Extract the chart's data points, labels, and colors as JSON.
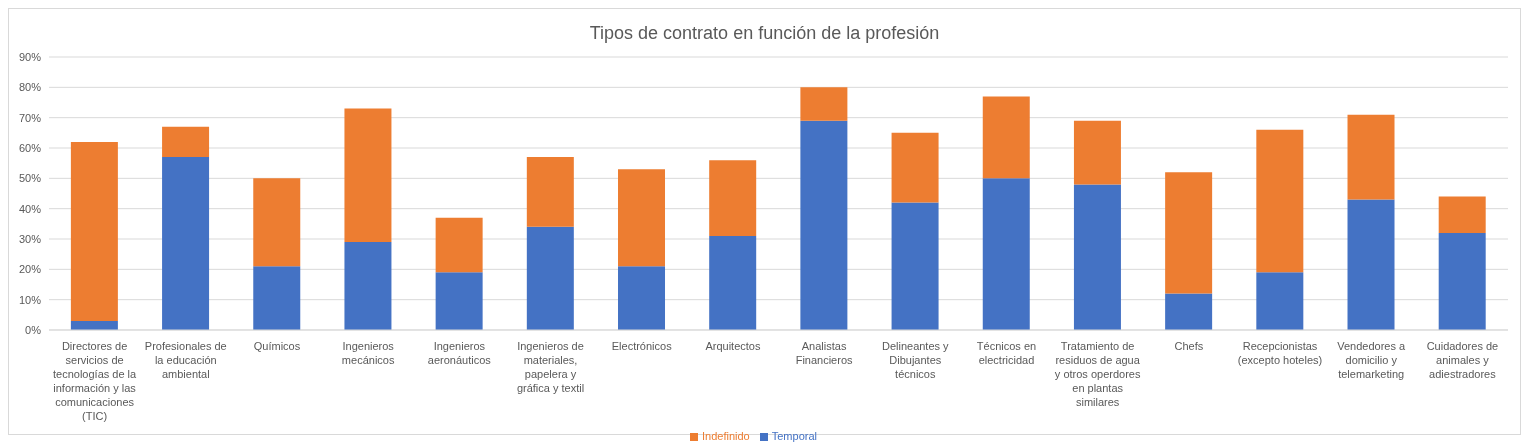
{
  "chart_data": {
    "type": "bar",
    "title": "Tipos de contrato en función de la profesión",
    "stacked": true,
    "categories": [
      "Directores de servicios de tecnologías de la información y las comunicaciones (TIC)",
      "Profesionales de la educación ambiental",
      "Químicos",
      "Ingenieros mecánicos",
      "Ingenieros aeronáuticos",
      "Ingenieros de materiales, papelera y gráfica y textil",
      "Electrónicos",
      "Arquitectos",
      "Analistas Financieros",
      "Delineantes y Dibujantes técnicos",
      "Técnicos en electricidad",
      "Tratamiento de residuos de agua y otros operdores en plantas similares",
      "Chefs",
      "Recepcionistas (excepto hoteles)",
      "Vendedores a domicilio y telemarketing",
      "Cuidadores de animales y adiestradores"
    ],
    "series": [
      {
        "name": "Temporal",
        "color": "#4472c4",
        "values": [
          3,
          57,
          21,
          29,
          19,
          34,
          21,
          31,
          69,
          42,
          50,
          48,
          12,
          19,
          43,
          32
        ]
      },
      {
        "name": "Indefinido",
        "color": "#ed7d31",
        "values": [
          59,
          10,
          29,
          44,
          18,
          23,
          32,
          25,
          11,
          23,
          27,
          21,
          40,
          47,
          28,
          12
        ]
      }
    ],
    "ylim": [
      0,
      90
    ],
    "yticks": [
      {
        "value": 0,
        "label": "0%"
      },
      {
        "value": 10,
        "label": "10%"
      },
      {
        "value": 20,
        "label": "20%"
      },
      {
        "value": 30,
        "label": "30%"
      },
      {
        "value": 40,
        "label": "40%"
      },
      {
        "value": 50,
        "label": "50%"
      },
      {
        "value": 60,
        "label": "60%"
      },
      {
        "value": 70,
        "label": "70%"
      },
      {
        "value": 80,
        "label": "80%"
      },
      {
        "value": 90,
        "label": "90%"
      }
    ],
    "grid": "y",
    "legend": "bottom"
  }
}
